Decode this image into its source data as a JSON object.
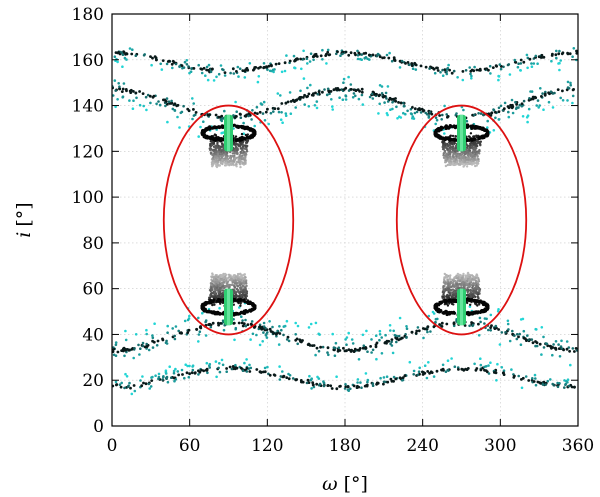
{
  "chart_data": {
    "type": "scatter",
    "xlabel": {
      "symbol": "ω",
      "unit": "[°]"
    },
    "ylabel": {
      "symbol": "i",
      "unit": "[°]"
    },
    "xlim": [
      0,
      360
    ],
    "ylim": [
      0,
      180
    ],
    "xticks": [
      "0",
      "60",
      "120",
      "180",
      "240",
      "300",
      "360"
    ],
    "yticks": [
      "0",
      "20",
      "40",
      "60",
      "80",
      "100",
      "120",
      "140",
      "160",
      "180"
    ],
    "grid": true,
    "colors": {
      "band_points_dark": "#0f2a2a",
      "band_points_light": "#22d6d6",
      "cluster_points_dark": "#111111",
      "cluster_points_light": "#bdbdbd",
      "inner_bar": "#2ecc71",
      "contour": "#dd1111"
    },
    "bands": [
      {
        "center_i": 21,
        "amplitude": 4,
        "phase": 180,
        "spread_light": 5,
        "count": 360
      },
      {
        "center_i": 39,
        "amplitude": 6,
        "phase": 180,
        "spread_light": 9,
        "count": 480
      },
      {
        "center_i": 141,
        "amplitude": 6,
        "phase": 0,
        "spread_light": 9,
        "count": 480
      },
      {
        "center_i": 159,
        "amplitude": 4,
        "phase": 0,
        "spread_light": 5,
        "count": 360
      }
    ],
    "contours": [
      {
        "center_omega": 90,
        "center_i": 90,
        "half_width_omega": 50,
        "half_height_i": 50
      },
      {
        "center_omega": 270,
        "center_i": 90,
        "half_width_omega": 50,
        "half_height_i": 50
      }
    ],
    "clusters": [
      {
        "omega": 90,
        "i_ring": 128,
        "i_far": 115,
        "ring_halfwidth": 24,
        "direction": "down"
      },
      {
        "omega": 90,
        "i_ring": 52,
        "i_far": 65,
        "ring_halfwidth": 24,
        "direction": "up"
      },
      {
        "omega": 270,
        "i_ring": 128,
        "i_far": 115,
        "ring_halfwidth": 24,
        "direction": "down"
      },
      {
        "omega": 270,
        "i_ring": 52,
        "i_far": 65,
        "ring_halfwidth": 24,
        "direction": "up"
      }
    ],
    "inner_bars": [
      {
        "omega": 90,
        "i_min": 120,
        "i_max": 136
      },
      {
        "omega": 90,
        "i_min": 44,
        "i_max": 60
      },
      {
        "omega": 270,
        "i_min": 120,
        "i_max": 136
      },
      {
        "omega": 270,
        "i_min": 44,
        "i_max": 60
      }
    ]
  }
}
